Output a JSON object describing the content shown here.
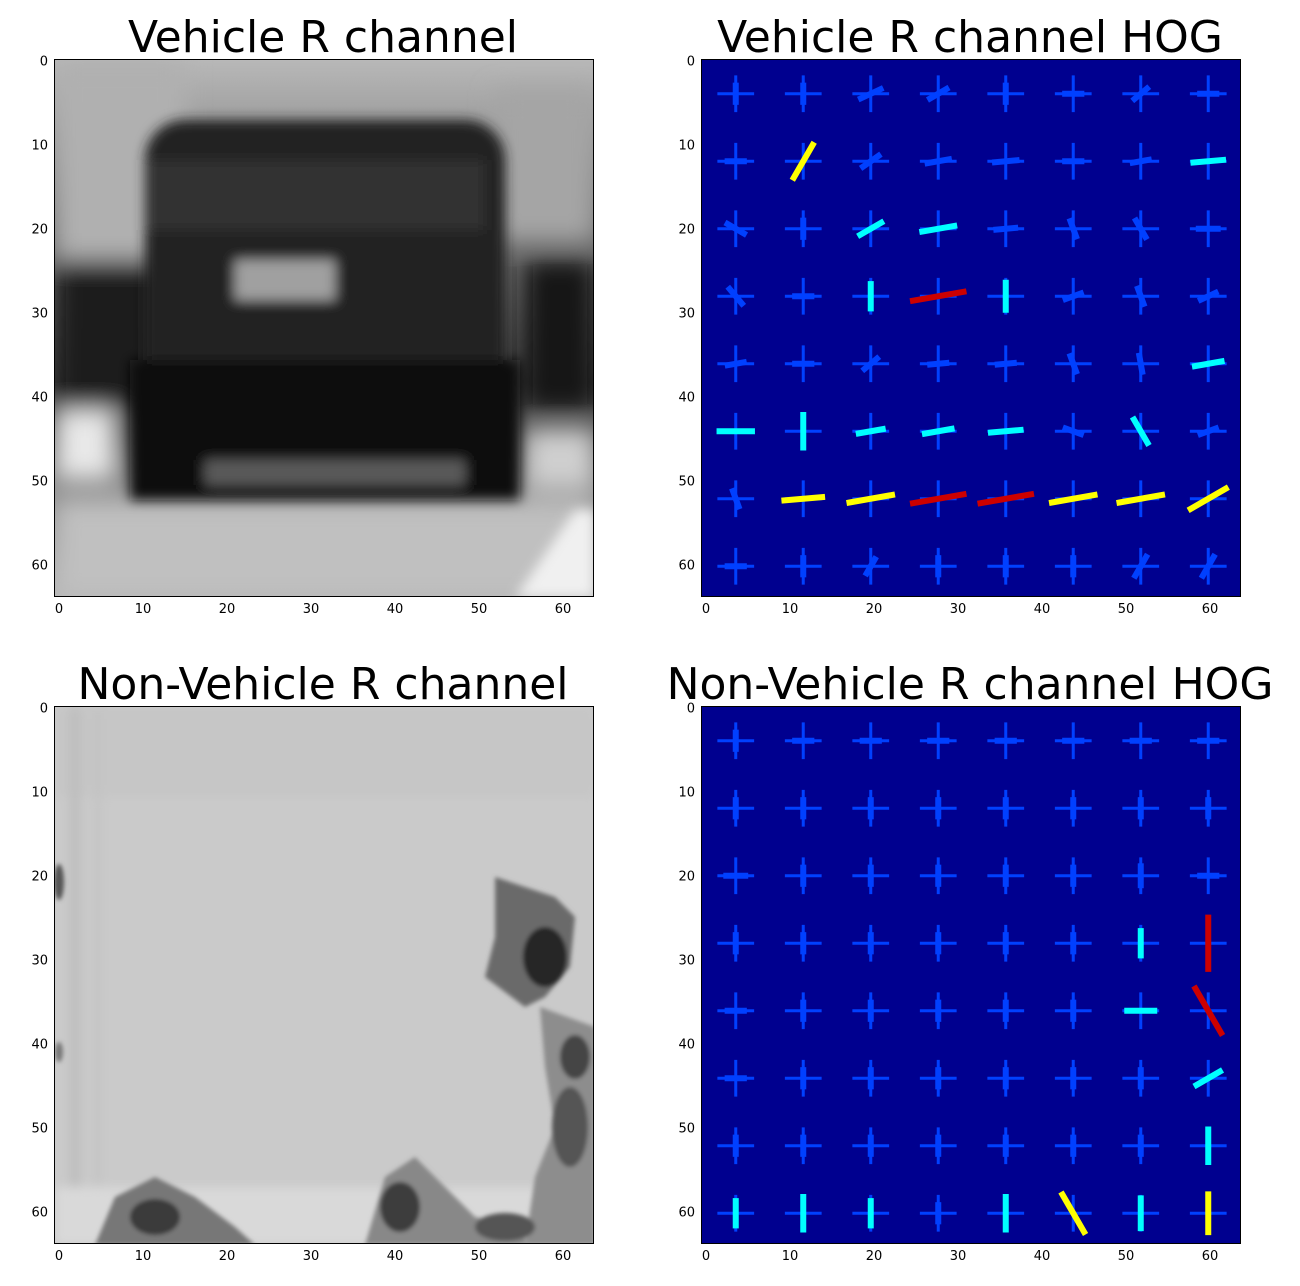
{
  "figure": {
    "panels": [
      {
        "title": "Vehicle R channel",
        "kind": "grayscale",
        "subject": "vehicle"
      },
      {
        "title": "Vehicle R channel HOG",
        "kind": "hog",
        "subject": "vehicle"
      },
      {
        "title": "Non-Vehicle R channel",
        "kind": "grayscale",
        "subject": "nonvehicle"
      },
      {
        "title": "Non-Vehicle R channel HOG",
        "kind": "hog",
        "subject": "nonvehicle"
      }
    ],
    "y_ticks": [
      "0",
      "10",
      "20",
      "30",
      "40",
      "50",
      "60"
    ],
    "x_ticks": [
      "0",
      "10",
      "20",
      "30",
      "40",
      "50",
      "60"
    ],
    "axis_range": [
      0,
      64
    ],
    "colors": {
      "hog_background": "#00008f",
      "hog_low": "#0040ff",
      "hog_mid": "#00ffff",
      "hog_high": "#ffff00",
      "hog_peak": "#cc0000"
    }
  }
}
